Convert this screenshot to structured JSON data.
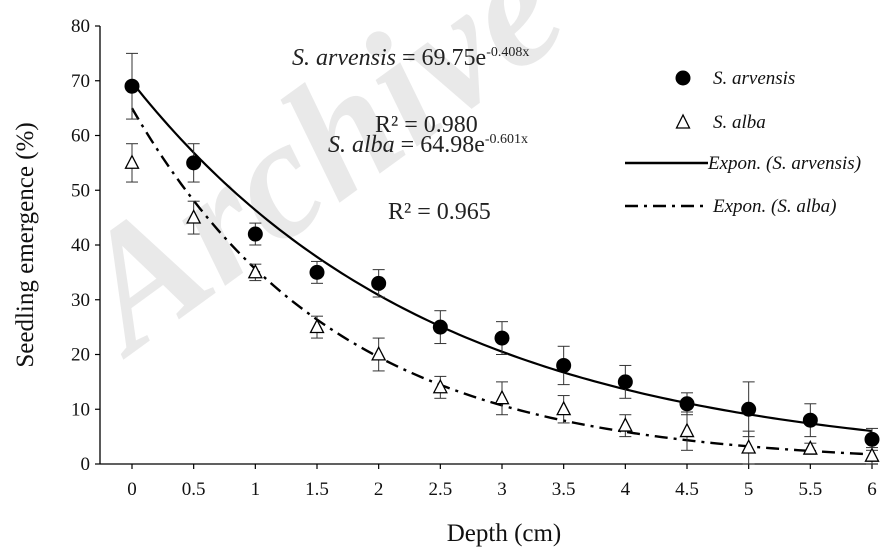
{
  "watermark": "Archive of",
  "equations": {
    "arvensis": {
      "species": "S. arvensis",
      "text": " = 69.75e",
      "exponent": "-0.408x",
      "r2": "R² = 0.980"
    },
    "alba": {
      "species": "S. alba",
      "text": " = 64.98e",
      "exponent": "-0.601x",
      "r2": "R² = 0.965"
    }
  },
  "chart_data": {
    "type": "scatter",
    "xlabel": "Depth (cm)",
    "ylabel": "Seedling emergence (%)",
    "xlim": [
      0,
      6
    ],
    "ylim": [
      0,
      80
    ],
    "x_ticks": [
      "0",
      "0.5",
      "1",
      "1.5",
      "2",
      "2.5",
      "3",
      "3.5",
      "4",
      "4.5",
      "5",
      "5.5",
      "6"
    ],
    "y_ticks": [
      "0",
      "10",
      "20",
      "30",
      "40",
      "50",
      "60",
      "70",
      "80"
    ],
    "x": [
      0,
      0.5,
      1,
      1.5,
      2,
      2.5,
      3,
      3.5,
      4,
      4.5,
      5,
      5.5,
      6
    ],
    "series": [
      {
        "name": "S. arvensis",
        "marker": "filled-circle",
        "values": [
          69,
          55,
          42,
          35,
          33,
          25,
          23,
          18,
          15,
          11,
          10,
          8,
          4.5
        ],
        "errors": [
          6,
          3.5,
          2,
          2,
          2.5,
          3,
          3,
          3.5,
          3,
          2,
          5,
          3,
          2
        ]
      },
      {
        "name": "S. alba",
        "marker": "open-triangle",
        "values": [
          55,
          45,
          35,
          25,
          20,
          14,
          12,
          10,
          7,
          6,
          3,
          2.8,
          1.5
        ],
        "errors": [
          3.5,
          3,
          1.5,
          2,
          3,
          2,
          3,
          2.5,
          2,
          3.5,
          3,
          1,
          1.5
        ]
      }
    ],
    "trendlines": [
      {
        "name": "Expon. (S. arvensis)",
        "a": 69.75,
        "b": -0.408,
        "style": "solid"
      },
      {
        "name": "Expon. (S. alba)",
        "a": 64.98,
        "b": -0.601,
        "style": "dash-dot"
      }
    ],
    "legend": [
      "S. arvensis",
      "S. alba",
      "Expon. (S. arvensis)",
      "Expon. (S. alba)"
    ],
    "legend_position": "right"
  }
}
